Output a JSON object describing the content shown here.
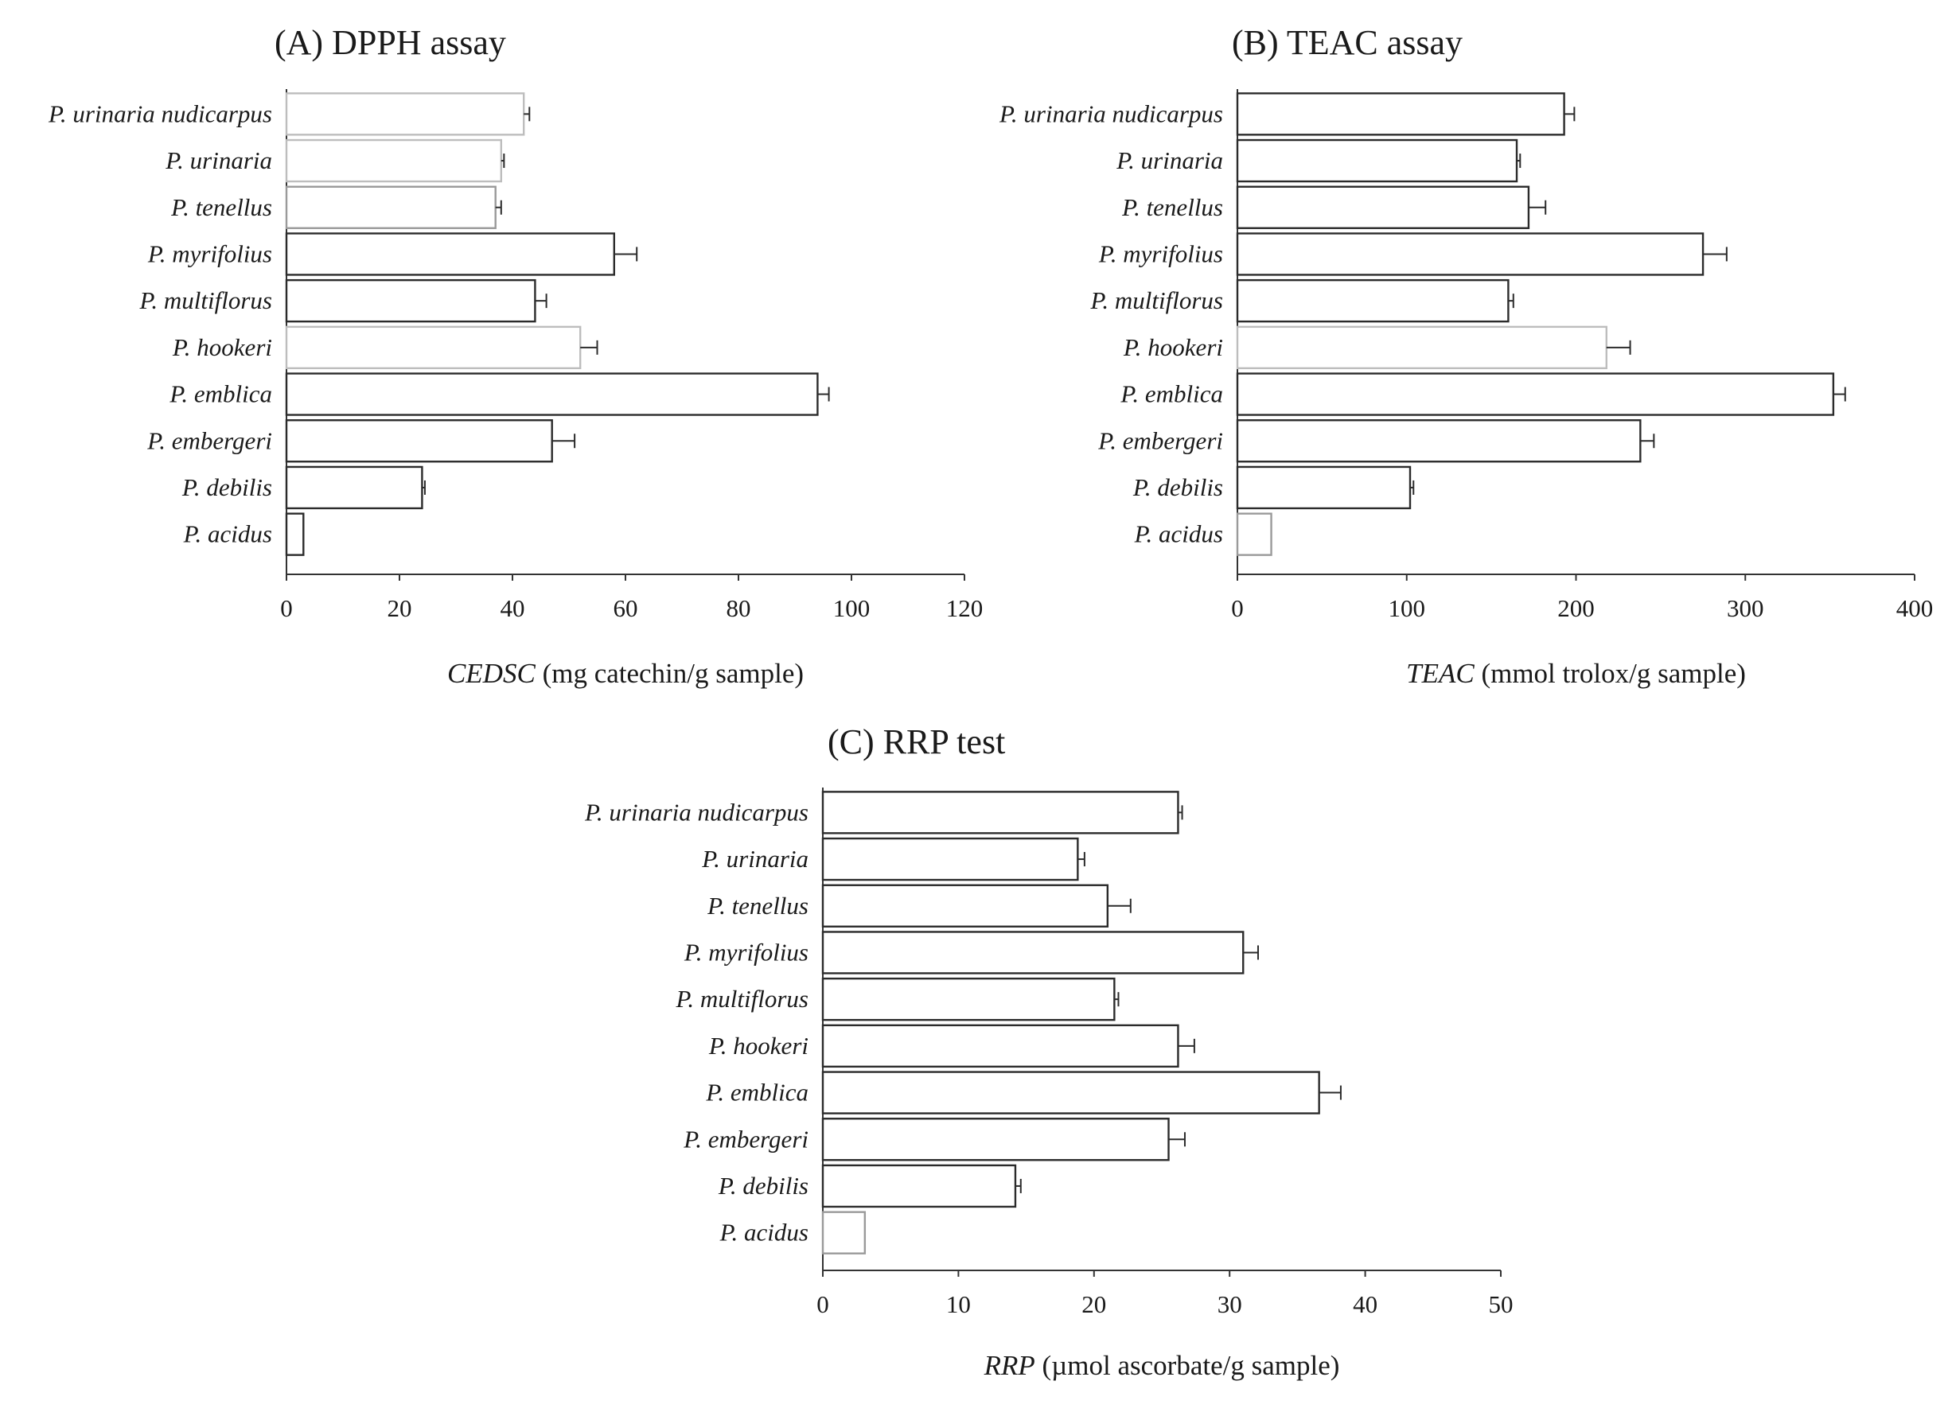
{
  "chart_data": [
    {
      "type": "bar",
      "orientation": "horizontal",
      "title": "(A) DPPH assay",
      "categories": [
        "P. urinaria nudicarpus",
        "P. urinaria",
        "P. tenellus",
        "P. myrifolius",
        "P. multiflorus",
        "P. hookeri",
        "P. emblica",
        "P. embergeri",
        "P. debilis",
        "P. acidus"
      ],
      "values": [
        42,
        38,
        37,
        58,
        44,
        52,
        94,
        47,
        24,
        3
      ],
      "errors": [
        1,
        0.5,
        1,
        4,
        2,
        3,
        2,
        4,
        0.5,
        0
      ],
      "bar_edge_colors": [
        "#bdbdbd",
        "#bdbdbd",
        "#9a9a9a",
        "#2b2b2b",
        "#2b2b2b",
        "#bdbdbd",
        "#2b2b2b",
        "#2b2b2b",
        "#2b2b2b",
        "#2b2b2b"
      ],
      "xlim": [
        0,
        120
      ],
      "xticks": [
        0,
        20,
        40,
        60,
        80,
        100,
        120
      ],
      "xlabel_italic": "CEDSC",
      "xlabel_rest": " (mg catechin/g sample)",
      "grid": false
    },
    {
      "type": "bar",
      "orientation": "horizontal",
      "title": "(B) TEAC assay",
      "categories": [
        "P. urinaria nudicarpus",
        "P. urinaria",
        "P. tenellus",
        "P. myrifolius",
        "P. multiflorus",
        "P. hookeri",
        "P. emblica",
        "P. embergeri",
        "P. debilis",
        "P. acidus"
      ],
      "values": [
        193,
        165,
        172,
        275,
        160,
        218,
        352,
        238,
        102,
        20
      ],
      "errors": [
        6,
        2,
        10,
        14,
        3,
        14,
        7,
        8,
        2,
        0
      ],
      "bar_edge_colors": [
        "#2b2b2b",
        "#2b2b2b",
        "#2b2b2b",
        "#2b2b2b",
        "#2b2b2b",
        "#bdbdbd",
        "#2b2b2b",
        "#2b2b2b",
        "#2b2b2b",
        "#9a9a9a"
      ],
      "xlim": [
        0,
        400
      ],
      "xticks": [
        0,
        100,
        200,
        300,
        400
      ],
      "xlabel_italic": "TEAC",
      "xlabel_rest": " (mmol trolox/g sample)",
      "grid": false
    },
    {
      "type": "bar",
      "orientation": "horizontal",
      "title": "(C) RRP test",
      "categories": [
        "P. urinaria nudicarpus",
        "P. urinaria",
        "P. tenellus",
        "P. myrifolius",
        "P. multiflorus",
        "P. hookeri",
        "P. emblica",
        "P. embergeri",
        "P. debilis",
        "P. acidus"
      ],
      "values": [
        26.2,
        18.8,
        21,
        31,
        21.5,
        26.2,
        36.6,
        25.5,
        14.2,
        3.1
      ],
      "errors": [
        0.3,
        0.5,
        1.7,
        1.1,
        0.3,
        1.2,
        1.6,
        1.2,
        0.4,
        0
      ],
      "bar_edge_colors": [
        "#2b2b2b",
        "#2b2b2b",
        "#2b2b2b",
        "#2b2b2b",
        "#2b2b2b",
        "#2b2b2b",
        "#2b2b2b",
        "#2b2b2b",
        "#2b2b2b",
        "#9a9a9a"
      ],
      "xlim": [
        0,
        50
      ],
      "xticks": [
        0,
        10,
        20,
        30,
        40,
        50
      ],
      "xlabel_italic": "RRP",
      "xlabel_rest": " (µmol ascorbate/g sample)",
      "grid": false
    }
  ]
}
